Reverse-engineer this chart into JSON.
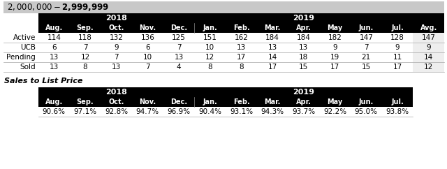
{
  "title": "$2,000,000 - $2,999,999",
  "title_bg": "#c8c8c8",
  "months_t1": [
    "Aug.",
    "Sep.",
    "Oct.",
    "Nov.",
    "Dec.",
    "Jan.",
    "Feb.",
    "Mar.",
    "Apr.",
    "May",
    "Jun.",
    "Jul.",
    "Avg."
  ],
  "rows": {
    "Active": [
      114,
      118,
      132,
      136,
      125,
      151,
      162,
      184,
      184,
      182,
      147,
      128,
      147
    ],
    "UCB": [
      6,
      7,
      9,
      6,
      7,
      10,
      13,
      13,
      13,
      9,
      7,
      9,
      9
    ],
    "Pending": [
      13,
      12,
      7,
      10,
      13,
      12,
      17,
      14,
      18,
      19,
      21,
      11,
      14
    ],
    "Sold": [
      13,
      8,
      13,
      7,
      4,
      8,
      8,
      17,
      15,
      17,
      15,
      17,
      12
    ]
  },
  "row_order": [
    "Active",
    "UCB",
    "Pending",
    "Sold"
  ],
  "avg_bg": "#eeeeee",
  "section2_title": "Sales to List Price",
  "months_t2": [
    "Aug.",
    "Sep.",
    "Oct.",
    "Nov.",
    "Dec.",
    "Jan.",
    "Feb.",
    "Mar.",
    "Apr.",
    "May",
    "Jun.",
    "Jul."
  ],
  "s2_values": [
    "90.6%",
    "97.1%",
    "92.8%",
    "94.7%",
    "96.9%",
    "90.4%",
    "93.1%",
    "94.3%",
    "93.7%",
    "92.2%",
    "95.0%",
    "93.8%"
  ],
  "header_bg": "#000000",
  "header_fg": "#ffffff",
  "text_color": "#000000",
  "border_color": "#aaaaaa",
  "fig_w": 6.4,
  "fig_h": 2.42,
  "dpi": 100
}
